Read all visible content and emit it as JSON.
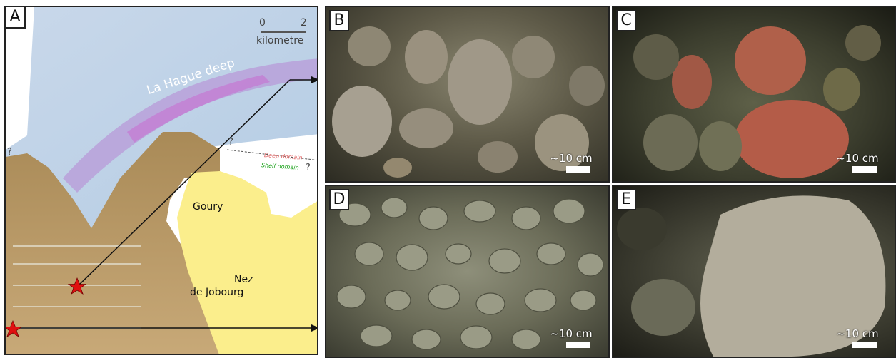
{
  "panels": {
    "a": "A",
    "b": "B",
    "c": "C",
    "d": "D",
    "e": "E"
  },
  "map": {
    "scale_zero": "0",
    "scale_two": "2",
    "scale_unit": "kilometre",
    "deep_feature": "La Hague deep",
    "deep_domain": "Deep domain",
    "shelf_domain": "Shelf domain",
    "question_mark": "?",
    "place_goury": "Goury",
    "place_nez": "Nez",
    "place_jobourg": "de Jobourg",
    "colors": {
      "deep_domain": "#e06060",
      "shelf_domain": "#18a018",
      "land": "#fbee8c",
      "marker": "#e01010"
    }
  },
  "photos": {
    "scale_label": "~10 cm"
  }
}
